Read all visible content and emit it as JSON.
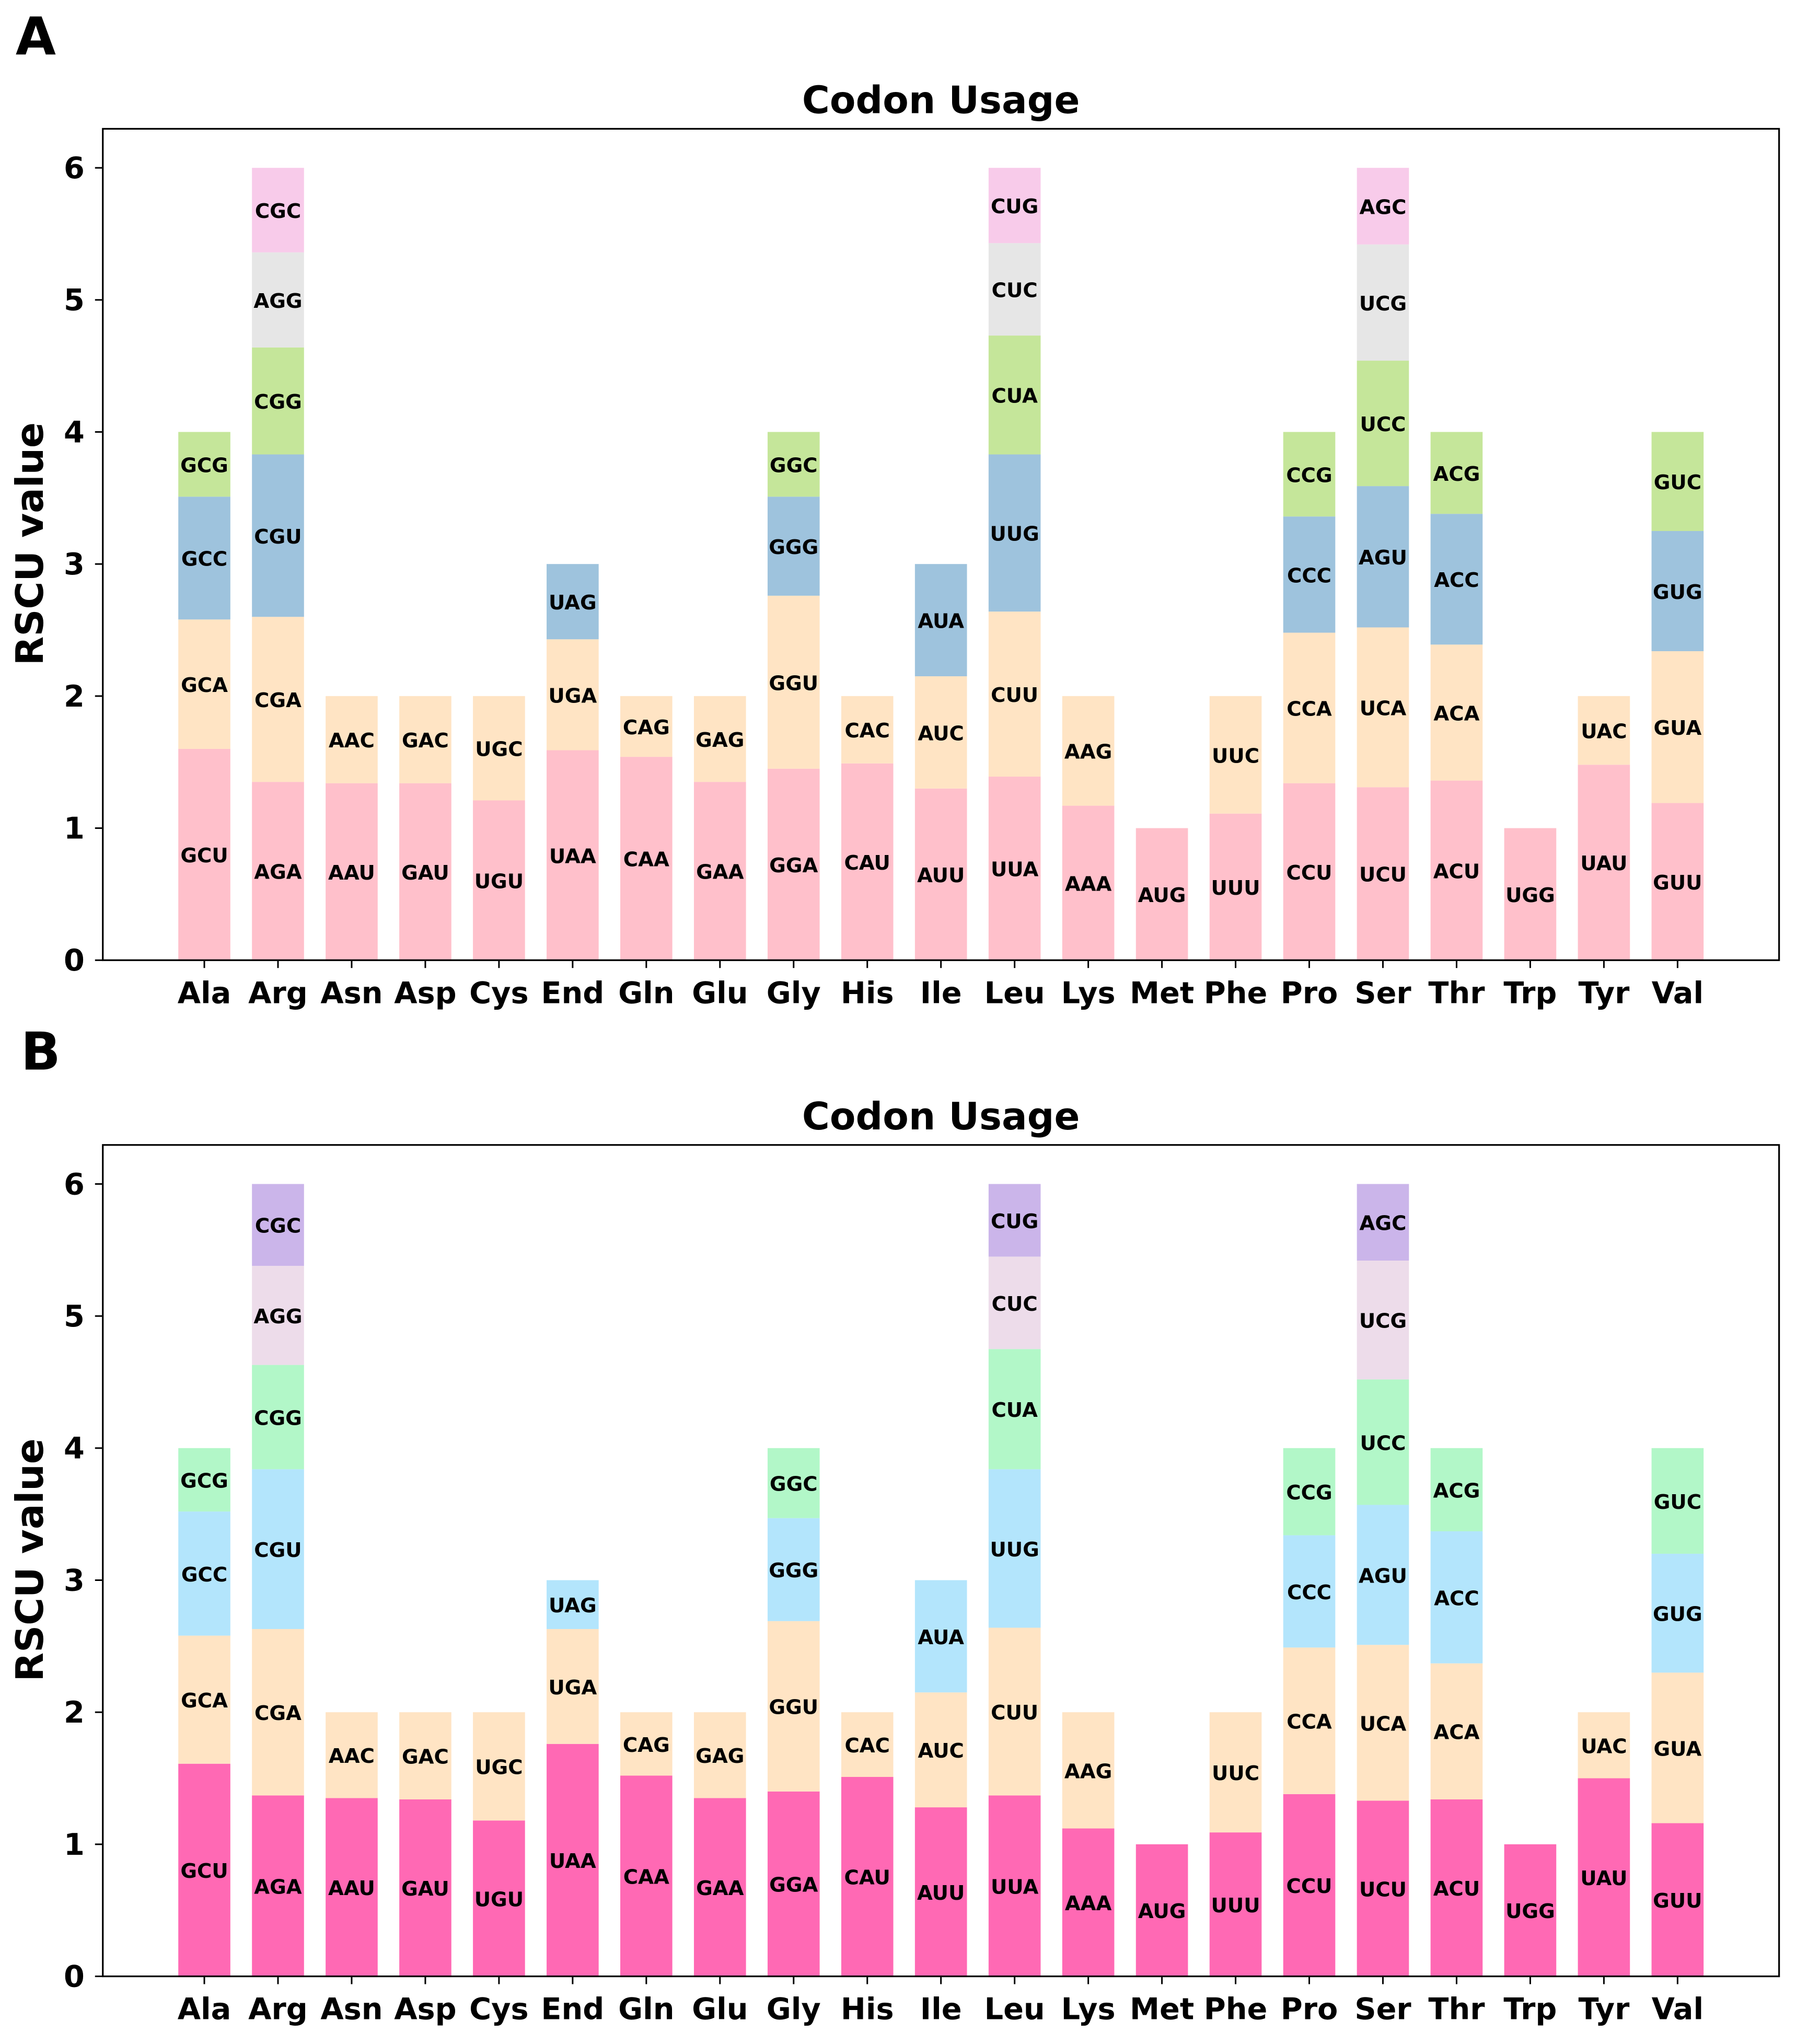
{
  "chart_data": [
    {
      "panel": "A",
      "type": "bar",
      "stacked": true,
      "title": "Codon Usage",
      "xlabel": "",
      "ylabel": "RSCU value",
      "ylim": [
        0,
        6.3
      ],
      "yticks": [
        "0",
        "1",
        "2",
        "3",
        "4",
        "5",
        "6"
      ],
      "grid": false,
      "colors": [
        "#ffc0cb",
        "#ffe4c4",
        "#9ec3dd",
        "#c5e69a",
        "#e6e6e6",
        "#f8cbea"
      ],
      "categories": [
        "Ala",
        "Arg",
        "Asn",
        "Asp",
        "Cys",
        "End",
        "Gln",
        "Glu",
        "Gly",
        "His",
        "Ile",
        "Leu",
        "Lys",
        "Met",
        "Phe",
        "Pro",
        "Ser",
        "Thr",
        "Trp",
        "Tyr",
        "Val"
      ],
      "stacks": [
        [
          {
            "codon": "GCU",
            "value": 1.6
          },
          {
            "codon": "GCA",
            "value": 0.98
          },
          {
            "codon": "GCC",
            "value": 0.93
          },
          {
            "codon": "GCG",
            "value": 0.49
          }
        ],
        [
          {
            "codon": "AGA",
            "value": 1.35
          },
          {
            "codon": "CGA",
            "value": 1.25
          },
          {
            "codon": "CGU",
            "value": 1.23
          },
          {
            "codon": "CGG",
            "value": 0.81
          },
          {
            "codon": "AGG",
            "value": 0.72
          },
          {
            "codon": "CGC",
            "value": 0.64
          }
        ],
        [
          {
            "codon": "AAU",
            "value": 1.34
          },
          {
            "codon": "AAC",
            "value": 0.66
          }
        ],
        [
          {
            "codon": "GAU",
            "value": 1.34
          },
          {
            "codon": "GAC",
            "value": 0.66
          }
        ],
        [
          {
            "codon": "UGU",
            "value": 1.21
          },
          {
            "codon": "UGC",
            "value": 0.79
          }
        ],
        [
          {
            "codon": "UAA",
            "value": 1.59
          },
          {
            "codon": "UGA",
            "value": 0.84
          },
          {
            "codon": "UAG",
            "value": 0.57
          }
        ],
        [
          {
            "codon": "CAA",
            "value": 1.54
          },
          {
            "codon": "CAG",
            "value": 0.46
          }
        ],
        [
          {
            "codon": "GAA",
            "value": 1.35
          },
          {
            "codon": "GAG",
            "value": 0.65
          }
        ],
        [
          {
            "codon": "GGA",
            "value": 1.45
          },
          {
            "codon": "GGU",
            "value": 1.31
          },
          {
            "codon": "GGG",
            "value": 0.75
          },
          {
            "codon": "GGC",
            "value": 0.49
          }
        ],
        [
          {
            "codon": "CAU",
            "value": 1.49
          },
          {
            "codon": "CAC",
            "value": 0.51
          }
        ],
        [
          {
            "codon": "AUU",
            "value": 1.3
          },
          {
            "codon": "AUC",
            "value": 0.85
          },
          {
            "codon": "AUA",
            "value": 0.85
          }
        ],
        [
          {
            "codon": "UUA",
            "value": 1.39
          },
          {
            "codon": "CUU",
            "value": 1.25
          },
          {
            "codon": "UUG",
            "value": 1.19
          },
          {
            "codon": "CUA",
            "value": 0.9
          },
          {
            "codon": "CUC",
            "value": 0.7
          },
          {
            "codon": "CUG",
            "value": 0.57
          }
        ],
        [
          {
            "codon": "AAA",
            "value": 1.17
          },
          {
            "codon": "AAG",
            "value": 0.83
          }
        ],
        [
          {
            "codon": "AUG",
            "value": 1.0
          }
        ],
        [
          {
            "codon": "UUU",
            "value": 1.11
          },
          {
            "codon": "UUC",
            "value": 0.89
          }
        ],
        [
          {
            "codon": "CCU",
            "value": 1.34
          },
          {
            "codon": "CCA",
            "value": 1.14
          },
          {
            "codon": "CCC",
            "value": 0.88
          },
          {
            "codon": "CCG",
            "value": 0.64
          }
        ],
        [
          {
            "codon": "UCU",
            "value": 1.31
          },
          {
            "codon": "UCA",
            "value": 1.21
          },
          {
            "codon": "AGU",
            "value": 1.07
          },
          {
            "codon": "UCC",
            "value": 0.95
          },
          {
            "codon": "UCG",
            "value": 0.88
          },
          {
            "codon": "AGC",
            "value": 0.58
          }
        ],
        [
          {
            "codon": "ACU",
            "value": 1.36
          },
          {
            "codon": "ACA",
            "value": 1.03
          },
          {
            "codon": "ACC",
            "value": 0.99
          },
          {
            "codon": "ACG",
            "value": 0.62
          }
        ],
        [
          {
            "codon": "UGG",
            "value": 1.0
          }
        ],
        [
          {
            "codon": "UAU",
            "value": 1.48
          },
          {
            "codon": "UAC",
            "value": 0.52
          }
        ],
        [
          {
            "codon": "GUU",
            "value": 1.19
          },
          {
            "codon": "GUA",
            "value": 1.15
          },
          {
            "codon": "GUG",
            "value": 0.91
          },
          {
            "codon": "GUC",
            "value": 0.75
          }
        ]
      ]
    },
    {
      "panel": "B",
      "type": "bar",
      "stacked": true,
      "title": "Codon Usage",
      "xlabel": "",
      "ylabel": "RSCU value",
      "ylim": [
        0,
        6.3
      ],
      "yticks": [
        "0",
        "1",
        "2",
        "3",
        "4",
        "5",
        "6"
      ],
      "grid": false,
      "colors": [
        "#ff69b4",
        "#ffe4c4",
        "#b3e5fc",
        "#b2f7c8",
        "#eddcea",
        "#cbb5ea"
      ],
      "categories": [
        "Ala",
        "Arg",
        "Asn",
        "Asp",
        "Cys",
        "End",
        "Gln",
        "Glu",
        "Gly",
        "His",
        "Ile",
        "Leu",
        "Lys",
        "Met",
        "Phe",
        "Pro",
        "Ser",
        "Thr",
        "Trp",
        "Tyr",
        "Val"
      ],
      "stacks": [
        [
          {
            "codon": "GCU",
            "value": 1.61
          },
          {
            "codon": "GCA",
            "value": 0.97
          },
          {
            "codon": "GCC",
            "value": 0.94
          },
          {
            "codon": "GCG",
            "value": 0.48
          }
        ],
        [
          {
            "codon": "AGA",
            "value": 1.37
          },
          {
            "codon": "CGA",
            "value": 1.26
          },
          {
            "codon": "CGU",
            "value": 1.21
          },
          {
            "codon": "CGG",
            "value": 0.79
          },
          {
            "codon": "AGG",
            "value": 0.75
          },
          {
            "codon": "CGC",
            "value": 0.62
          }
        ],
        [
          {
            "codon": "AAU",
            "value": 1.35
          },
          {
            "codon": "AAC",
            "value": 0.65
          }
        ],
        [
          {
            "codon": "GAU",
            "value": 1.34
          },
          {
            "codon": "GAC",
            "value": 0.66
          }
        ],
        [
          {
            "codon": "UGU",
            "value": 1.18
          },
          {
            "codon": "UGC",
            "value": 0.82
          }
        ],
        [
          {
            "codon": "UAA",
            "value": 1.76
          },
          {
            "codon": "UGA",
            "value": 0.87
          },
          {
            "codon": "UAG",
            "value": 0.37
          }
        ],
        [
          {
            "codon": "CAA",
            "value": 1.52
          },
          {
            "codon": "CAG",
            "value": 0.48
          }
        ],
        [
          {
            "codon": "GAA",
            "value": 1.35
          },
          {
            "codon": "GAG",
            "value": 0.65
          }
        ],
        [
          {
            "codon": "GGA",
            "value": 1.4
          },
          {
            "codon": "GGU",
            "value": 1.29
          },
          {
            "codon": "GGG",
            "value": 0.78
          },
          {
            "codon": "GGC",
            "value": 0.53
          }
        ],
        [
          {
            "codon": "CAU",
            "value": 1.51
          },
          {
            "codon": "CAC",
            "value": 0.49
          }
        ],
        [
          {
            "codon": "AUU",
            "value": 1.28
          },
          {
            "codon": "AUC",
            "value": 0.87
          },
          {
            "codon": "AUA",
            "value": 0.85
          }
        ],
        [
          {
            "codon": "UUA",
            "value": 1.37
          },
          {
            "codon": "CUU",
            "value": 1.27
          },
          {
            "codon": "UUG",
            "value": 1.2
          },
          {
            "codon": "CUA",
            "value": 0.91
          },
          {
            "codon": "CUC",
            "value": 0.7
          },
          {
            "codon": "CUG",
            "value": 0.55
          }
        ],
        [
          {
            "codon": "AAA",
            "value": 1.12
          },
          {
            "codon": "AAG",
            "value": 0.88
          }
        ],
        [
          {
            "codon": "AUG",
            "value": 1.0
          }
        ],
        [
          {
            "codon": "UUU",
            "value": 1.09
          },
          {
            "codon": "UUC",
            "value": 0.91
          }
        ],
        [
          {
            "codon": "CCU",
            "value": 1.38
          },
          {
            "codon": "CCA",
            "value": 1.11
          },
          {
            "codon": "CCC",
            "value": 0.85
          },
          {
            "codon": "CCG",
            "value": 0.66
          }
        ],
        [
          {
            "codon": "UCU",
            "value": 1.33
          },
          {
            "codon": "UCA",
            "value": 1.18
          },
          {
            "codon": "AGU",
            "value": 1.06
          },
          {
            "codon": "UCC",
            "value": 0.95
          },
          {
            "codon": "UCG",
            "value": 0.9
          },
          {
            "codon": "AGC",
            "value": 0.58
          }
        ],
        [
          {
            "codon": "ACU",
            "value": 1.34
          },
          {
            "codon": "ACA",
            "value": 1.03
          },
          {
            "codon": "ACC",
            "value": 1.0
          },
          {
            "codon": "ACG",
            "value": 0.63
          }
        ],
        [
          {
            "codon": "UGG",
            "value": 1.0
          }
        ],
        [
          {
            "codon": "UAU",
            "value": 1.5
          },
          {
            "codon": "UAC",
            "value": 0.5
          }
        ],
        [
          {
            "codon": "GUU",
            "value": 1.16
          },
          {
            "codon": "GUA",
            "value": 1.14
          },
          {
            "codon": "GUG",
            "value": 0.9
          },
          {
            "codon": "GUC",
            "value": 0.8
          }
        ]
      ]
    }
  ]
}
